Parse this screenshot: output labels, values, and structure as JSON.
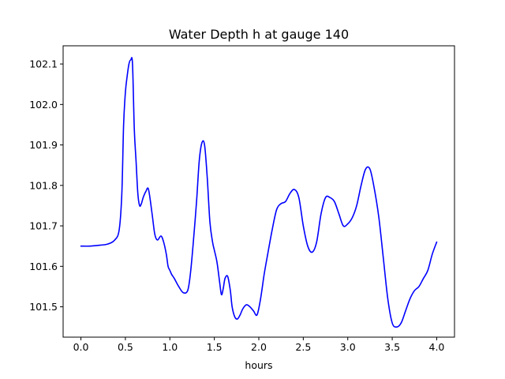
{
  "chart_data": {
    "type": "line",
    "title": "Water Depth h at gauge 140",
    "xlabel": "hours",
    "ylabel": "",
    "xlim": [
      -0.2,
      4.2
    ],
    "ylim": [
      101.425,
      102.145
    ],
    "xticks": [
      0.0,
      0.5,
      1.0,
      1.5,
      2.0,
      2.5,
      3.0,
      3.5,
      4.0
    ],
    "xtick_labels": [
      "0.0",
      "0.5",
      "1.0",
      "1.5",
      "2.0",
      "2.5",
      "3.0",
      "3.5",
      "4.0"
    ],
    "yticks": [
      101.5,
      101.6,
      101.7,
      101.8,
      101.9,
      102.0,
      102.1
    ],
    "ytick_labels": [
      "101.5",
      "101.6",
      "101.7",
      "101.8",
      "101.9",
      "102.0",
      "102.1"
    ],
    "grid": false,
    "line_color": "#0000ff",
    "series": [
      {
        "x": [
          0.0,
          0.1,
          0.2,
          0.3,
          0.38,
          0.43,
          0.46,
          0.48,
          0.5,
          0.52,
          0.54,
          0.56,
          0.58,
          0.6,
          0.62,
          0.64,
          0.66,
          0.68,
          0.7,
          0.73,
          0.76,
          0.8,
          0.83,
          0.86,
          0.9,
          0.93,
          0.96,
          0.98,
          1.0,
          1.02,
          1.05,
          1.1,
          1.15,
          1.2,
          1.23,
          1.26,
          1.3,
          1.33,
          1.36,
          1.39,
          1.42,
          1.45,
          1.48,
          1.5,
          1.53,
          1.56,
          1.58,
          1.6,
          1.62,
          1.65,
          1.68,
          1.7,
          1.73,
          1.76,
          1.79,
          1.82,
          1.86,
          1.9,
          1.94,
          1.98,
          2.02,
          2.06,
          2.1,
          2.15,
          2.2,
          2.25,
          2.3,
          2.35,
          2.4,
          2.45,
          2.5,
          2.55,
          2.6,
          2.65,
          2.7,
          2.75,
          2.8,
          2.85,
          2.9,
          2.95,
          3.0,
          3.05,
          3.1,
          3.15,
          3.2,
          3.25,
          3.3,
          3.35,
          3.4,
          3.45,
          3.5,
          3.55,
          3.6,
          3.65,
          3.7,
          3.75,
          3.8,
          3.85,
          3.9,
          3.95,
          4.0
        ],
        "y": [
          101.65,
          101.65,
          101.652,
          101.655,
          101.665,
          101.69,
          101.78,
          101.95,
          102.03,
          102.07,
          102.1,
          102.11,
          102.1,
          101.94,
          101.86,
          101.78,
          101.75,
          101.755,
          101.77,
          101.785,
          101.79,
          101.73,
          101.68,
          101.665,
          101.675,
          101.66,
          101.63,
          101.6,
          101.59,
          101.58,
          101.57,
          101.55,
          101.535,
          101.54,
          101.58,
          101.65,
          101.76,
          101.86,
          101.905,
          101.9,
          101.82,
          101.71,
          101.66,
          101.64,
          101.61,
          101.56,
          101.53,
          101.545,
          101.57,
          101.575,
          101.54,
          101.5,
          101.475,
          101.47,
          101.48,
          101.495,
          101.505,
          101.5,
          101.49,
          101.48,
          101.52,
          101.58,
          101.63,
          101.69,
          101.74,
          101.755,
          101.76,
          101.78,
          101.79,
          101.77,
          101.7,
          101.65,
          101.635,
          101.66,
          101.73,
          101.77,
          101.77,
          101.76,
          101.73,
          101.7,
          101.705,
          101.72,
          101.75,
          101.8,
          101.84,
          101.84,
          101.79,
          101.72,
          101.62,
          101.52,
          101.46,
          101.45,
          101.46,
          101.49,
          101.52,
          101.54,
          101.55,
          101.57,
          101.59,
          101.63,
          101.66
        ]
      }
    ]
  }
}
